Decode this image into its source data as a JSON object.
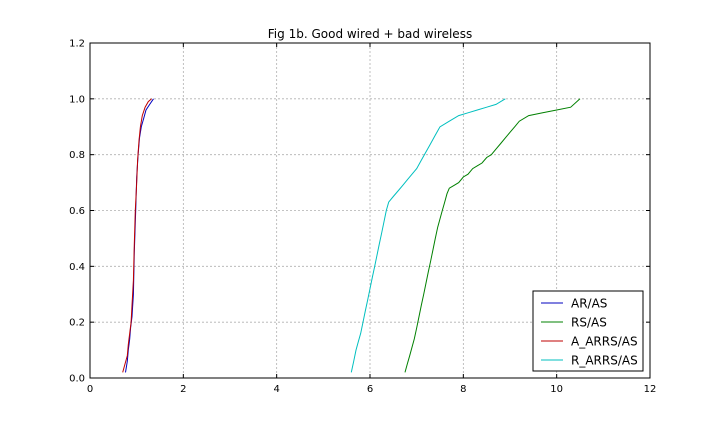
{
  "chart_data": {
    "type": "line",
    "title": "Fig 1b. Good wired + bad wireless",
    "xlabel": "",
    "ylabel": "",
    "xlim": [
      0,
      12
    ],
    "ylim": [
      0,
      1.2
    ],
    "xticks": [
      "0",
      "2",
      "4",
      "6",
      "8",
      "10",
      "12"
    ],
    "yticks": [
      "0.0",
      "0.2",
      "0.4",
      "0.6",
      "0.8",
      "1.0",
      "1.2"
    ],
    "grid": true,
    "legend_position": "lower-right",
    "series": [
      {
        "name": "AR/AS",
        "color": "#0000bf",
        "x": [
          0.76,
          0.8,
          0.82,
          0.85,
          0.87,
          0.9,
          0.93,
          0.95,
          0.98,
          1.0,
          1.03,
          1.06,
          1.1,
          1.15,
          1.2,
          1.28,
          1.36
        ],
        "y": [
          0.02,
          0.06,
          0.1,
          0.14,
          0.18,
          0.22,
          0.3,
          0.45,
          0.6,
          0.72,
          0.8,
          0.86,
          0.9,
          0.93,
          0.96,
          0.98,
          1.0
        ]
      },
      {
        "name": "RS/AS",
        "color": "#008000",
        "x": [
          6.75,
          6.8,
          6.85,
          6.9,
          6.95,
          7.0,
          7.05,
          7.1,
          7.15,
          7.2,
          7.25,
          7.3,
          7.35,
          7.4,
          7.45,
          7.5,
          7.55,
          7.6,
          7.65,
          7.7,
          7.8,
          7.9,
          8.0,
          8.1,
          8.2,
          8.3,
          8.4,
          8.5,
          8.6,
          8.7,
          8.8,
          8.9,
          9.0,
          9.1,
          9.2,
          9.4,
          9.7,
          10.0,
          10.3,
          10.5
        ],
        "y": [
          0.02,
          0.05,
          0.08,
          0.11,
          0.14,
          0.18,
          0.22,
          0.26,
          0.3,
          0.34,
          0.38,
          0.42,
          0.46,
          0.5,
          0.54,
          0.57,
          0.6,
          0.63,
          0.66,
          0.68,
          0.69,
          0.7,
          0.72,
          0.73,
          0.75,
          0.76,
          0.77,
          0.79,
          0.8,
          0.82,
          0.84,
          0.86,
          0.88,
          0.9,
          0.92,
          0.94,
          0.95,
          0.96,
          0.97,
          1.0
        ]
      },
      {
        "name": "A_ARRS/AS",
        "color": "#bf0000",
        "x": [
          0.7,
          0.75,
          0.8,
          0.82,
          0.85,
          0.88,
          0.9,
          0.93,
          0.95,
          0.97,
          1.0,
          1.02,
          1.05,
          1.08,
          1.12,
          1.18,
          1.25,
          1.32
        ],
        "y": [
          0.02,
          0.05,
          0.08,
          0.12,
          0.16,
          0.2,
          0.26,
          0.35,
          0.48,
          0.6,
          0.7,
          0.78,
          0.85,
          0.9,
          0.94,
          0.97,
          0.99,
          1.0
        ]
      },
      {
        "name": "R_ARRS/AS",
        "color": "#00bfbf",
        "x": [
          5.6,
          5.65,
          5.7,
          5.75,
          5.8,
          5.85,
          5.9,
          5.95,
          6.0,
          6.05,
          6.1,
          6.15,
          6.2,
          6.25,
          6.3,
          6.35,
          6.4,
          6.5,
          6.6,
          6.7,
          6.8,
          6.9,
          7.0,
          7.1,
          7.2,
          7.3,
          7.4,
          7.5,
          7.7,
          7.9,
          8.1,
          8.3,
          8.5,
          8.7,
          8.9
        ],
        "y": [
          0.02,
          0.06,
          0.1,
          0.13,
          0.16,
          0.2,
          0.24,
          0.28,
          0.32,
          0.36,
          0.4,
          0.44,
          0.48,
          0.52,
          0.56,
          0.6,
          0.63,
          0.65,
          0.67,
          0.69,
          0.71,
          0.73,
          0.75,
          0.78,
          0.81,
          0.84,
          0.87,
          0.9,
          0.92,
          0.94,
          0.95,
          0.96,
          0.97,
          0.98,
          1.0
        ]
      }
    ]
  }
}
